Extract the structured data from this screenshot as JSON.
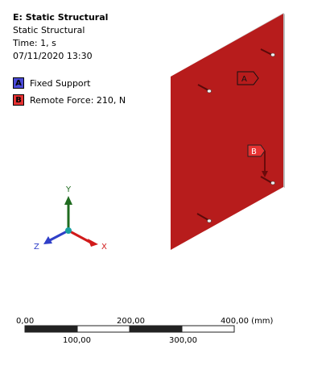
{
  "header": {
    "system": "E: Static Structural",
    "analysis": "Static Structural",
    "time": "Time: 1, s",
    "date": "07/11/2020 13:30"
  },
  "legend": [
    {
      "letter": "A",
      "label": "Fixed Support",
      "color": "#4a4ad8"
    },
    {
      "letter": "B",
      "label": "Remote Force: 210, N",
      "color": "#e63232"
    }
  ],
  "triad": {
    "x": "X",
    "y": "Y",
    "z": "Z"
  },
  "scale": {
    "top_labels": [
      "0,00",
      "200,00",
      "400,00 (mm)"
    ],
    "bottom_labels": [
      "100,00",
      "300,00"
    ]
  },
  "colors": {
    "plate": "#b71c1c",
    "plate_edge": "#d8d8d8",
    "axis_x": "#d11a1a",
    "axis_y": "#1f6b1f",
    "axis_z": "#2f3fc8",
    "triad_center": "#18a0a0"
  }
}
